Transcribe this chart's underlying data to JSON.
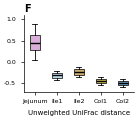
{
  "title": "F",
  "xlabel": "Unweighted UniFrac distance",
  "ylabel": "",
  "x_labels": [
    "Jejunum",
    "Ile1",
    "Ile2",
    "Col1",
    "Col2"
  ],
  "box_data": [
    {
      "median": 0.45,
      "q1": 0.28,
      "q3": 0.62,
      "whislo": 0.05,
      "whishi": 0.88,
      "fliers": []
    },
    {
      "median": -0.32,
      "q1": -0.37,
      "q3": -0.27,
      "whislo": -0.42,
      "whishi": -0.22,
      "fliers": []
    },
    {
      "median": -0.24,
      "q1": -0.3,
      "q3": -0.18,
      "whislo": -0.36,
      "whishi": -0.12,
      "fliers": []
    },
    {
      "median": -0.45,
      "q1": -0.5,
      "q3": -0.4,
      "whislo": -0.55,
      "whishi": -0.35,
      "fliers": []
    },
    {
      "median": -0.5,
      "q1": -0.55,
      "q3": -0.45,
      "whislo": -0.6,
      "whishi": -0.4,
      "fliers": []
    }
  ],
  "colors": [
    "#d4a0d4",
    "#b0d4e8",
    "#c8a050",
    "#c8b030",
    "#4a90c0"
  ],
  "ylim": [
    -0.7,
    1.1
  ],
  "yticks": [
    -0.5,
    0.0,
    0.5,
    1.0
  ],
  "figsize": [
    1.38,
    1.2
  ],
  "dpi": 100,
  "title_fontsize": 7,
  "label_fontsize": 5,
  "tick_fontsize": 4.5
}
